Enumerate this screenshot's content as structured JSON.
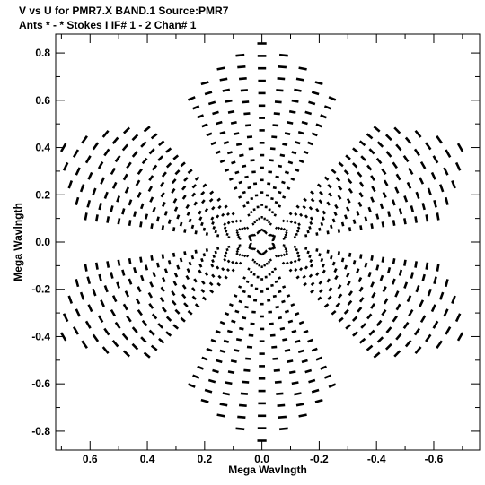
{
  "chart_data": {
    "type": "scatter",
    "title": "V vs U for PMR7.X BAND.1   Source:PMR7",
    "subtitle": "Ants * - *     Stokes I  IF# 1 - 2  Chan# 1",
    "xlabel": "Mega Wavlngth",
    "ylabel": "Mega Wavlngth",
    "xlim": [
      0.72,
      -0.76
    ],
    "ylim": [
      -0.88,
      0.88
    ],
    "xticks": [
      0.6,
      0.4,
      0.2,
      0.0,
      -0.2,
      -0.4,
      -0.6
    ],
    "yticks": [
      0.8,
      0.6,
      0.4,
      0.2,
      0.0,
      -0.2,
      -0.4,
      -0.6,
      -0.8
    ],
    "xtick_labels": [
      "0.6",
      "0.4",
      "0.2",
      "0.0",
      "-0.2",
      "-0.4",
      "-0.6"
    ],
    "ytick_labels": [
      "0.8",
      "0.6",
      "0.4",
      "0.2",
      "0.0",
      "-0.2",
      "-0.4",
      "-0.6",
      "-0.8"
    ],
    "grid": false,
    "legend": "none",
    "mark_color": "#000000",
    "arms": [
      {
        "name": "arm-1",
        "angle_deg": 90,
        "length": 0.84,
        "spread_deg": 22
      },
      {
        "name": "arm-2",
        "angle_deg": 150,
        "length": 0.8,
        "spread_deg": 20
      },
      {
        "name": "arm-3",
        "angle_deg": 210,
        "length": 0.8,
        "spread_deg": 20
      },
      {
        "name": "arm-4",
        "angle_deg": 270,
        "length": 0.84,
        "spread_deg": 22
      },
      {
        "name": "arm-5",
        "angle_deg": 330,
        "length": 0.8,
        "spread_deg": 20
      },
      {
        "name": "arm-6",
        "angle_deg": 30,
        "length": 0.8,
        "spread_deg": 20
      }
    ]
  }
}
